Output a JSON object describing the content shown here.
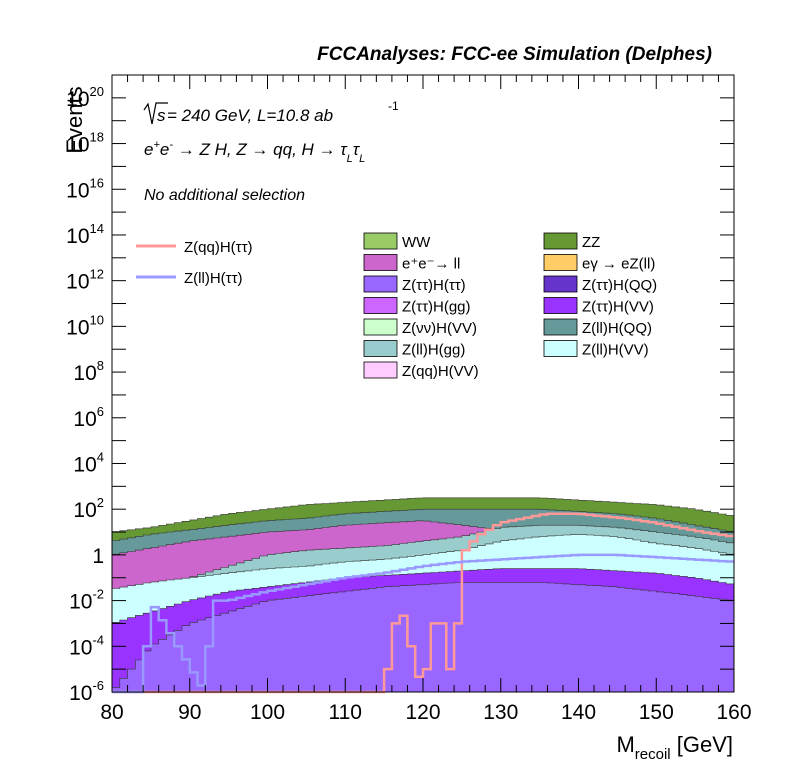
{
  "header": {
    "title": "FCCAnalyses: FCC-ee Simulation (Delphes)"
  },
  "annotations": {
    "energy_sqrt": "s",
    "energy_rest": " = 240 GeV, L=10.8 ab",
    "energy_exp": "-1",
    "process_lhs": "e",
    "process_sup1": "+",
    "process_e2": "e",
    "process_sup2": "-",
    "process_mid": " → Z H, Z  → qq, H  → τ",
    "process_sub1": "L",
    "process_tau2": "τ",
    "process_sub2": "L",
    "selection": "No additional selection"
  },
  "chart_data": {
    "type": "histogram",
    "title": "FCCAnalyses: FCC-ee Simulation (Delphes)",
    "xlabel_main": "M",
    "xlabel_sub": "recoil",
    "xlabel_unit": " [GeV]",
    "ylabel": "Events",
    "xlim": [
      80,
      160
    ],
    "ylim": [
      1e-06,
      1e+21
    ],
    "y_log": true,
    "x_ticks": [
      "80",
      "90",
      "100",
      "110",
      "120",
      "130",
      "140",
      "150",
      "160"
    ],
    "y_tick_labels": [
      {
        "base": "10",
        "exp": "-6"
      },
      {
        "base": "10",
        "exp": "-4"
      },
      {
        "base": "10",
        "exp": "-2"
      },
      {
        "base": "1",
        "exp": ""
      },
      {
        "base": "10",
        "exp": "2"
      },
      {
        "base": "10",
        "exp": "4"
      },
      {
        "base": "10",
        "exp": "6"
      },
      {
        "base": "10",
        "exp": "8"
      },
      {
        "base": "10",
        "exp": "10"
      },
      {
        "base": "10",
        "exp": "12"
      },
      {
        "base": "10",
        "exp": "14"
      },
      {
        "base": "10",
        "exp": "16"
      },
      {
        "base": "10",
        "exp": "18"
      },
      {
        "base": "10",
        "exp": "20"
      }
    ],
    "legend_signal": [
      {
        "name": "Z(qq)H(ττ)",
        "color": "#ff9999"
      },
      {
        "name": "Z(ll)H(ττ)",
        "color": "#9999ff"
      }
    ],
    "legend_backgrounds": [
      {
        "name": "WW",
        "color": "#99cc66"
      },
      {
        "name": "ZZ",
        "color": "#669933"
      },
      {
        "name": "e⁺e⁻→ ll",
        "color": "#cc66cc"
      },
      {
        "name": "eγ → eZ(ll)",
        "color": "#ffcc66"
      },
      {
        "name": "Z(ττ)H(ττ)",
        "color": "#9966ff"
      },
      {
        "name": "Z(ττ)H(QQ)",
        "color": "#6633cc"
      },
      {
        "name": "Z(ττ)H(gg)",
        "color": "#cc66ff"
      },
      {
        "name": "Z(ττ)H(VV)",
        "color": "#9933ff"
      },
      {
        "name": "Z(νν)H(VV)",
        "color": "#ccffcc"
      },
      {
        "name": "Z(ll)H(QQ)",
        "color": "#669999"
      },
      {
        "name": "Z(ll)H(gg)",
        "color": "#99cccc"
      },
      {
        "name": "Z(ll)H(VV)",
        "color": "#ccffff"
      },
      {
        "name": "Z(qq)H(VV)",
        "color": "#ffccff"
      }
    ],
    "stack_envelopes_log10": [
      {
        "name": "ZZ",
        "color": "#669933",
        "x": [
          80,
          85,
          90,
          95,
          100,
          105,
          110,
          115,
          120,
          125,
          130,
          135,
          140,
          145,
          150,
          155,
          160
        ],
        "log10_y": [
          1.0,
          1.2,
          1.5,
          1.8,
          2.0,
          2.2,
          2.3,
          2.4,
          2.5,
          2.5,
          2.5,
          2.5,
          2.4,
          2.3,
          2.2,
          2.0,
          1.7
        ]
      },
      {
        "name": "Z(ll)H(QQ)",
        "color": "#669999",
        "x": [
          80,
          85,
          90,
          95,
          100,
          105,
          110,
          115,
          120,
          125,
          130,
          135,
          140,
          145,
          150,
          155,
          160
        ],
        "log10_y": [
          0.6,
          0.9,
          1.1,
          1.3,
          1.5,
          1.6,
          1.8,
          1.9,
          2.0,
          2.0,
          2.0,
          2.0,
          1.9,
          1.8,
          1.6,
          1.3,
          1.0
        ]
      },
      {
        "name": "e⁺e⁻→ ll",
        "color": "#cc66cc",
        "x": [
          80,
          85,
          90,
          95,
          100,
          105,
          110,
          115,
          120,
          125,
          130,
          135,
          140,
          145,
          150,
          155,
          160
        ],
        "log10_y": [
          0.0,
          0.3,
          0.6,
          0.8,
          1.0,
          1.1,
          1.3,
          1.4,
          1.5,
          1.3,
          1.1,
          0.9,
          0.7,
          0.5,
          0.3,
          0.1,
          0.0
        ]
      },
      {
        "name": "Z(ll)H(gg)",
        "color": "#99cccc",
        "x": [
          80,
          85,
          90,
          95,
          100,
          105,
          110,
          115,
          120,
          125,
          130,
          135,
          140,
          145,
          150,
          155,
          160
        ],
        "log10_y": [
          -4.0,
          -2.5,
          -1.0,
          -0.5,
          0.0,
          0.2,
          0.3,
          0.4,
          0.6,
          0.8,
          1.2,
          1.3,
          1.3,
          1.2,
          1.0,
          0.8,
          0.5
        ]
      },
      {
        "name": "Z(ll)H(VV)",
        "color": "#ccffff",
        "x": [
          80,
          85,
          90,
          95,
          100,
          105,
          110,
          115,
          120,
          125,
          130,
          135,
          140,
          145,
          150,
          155,
          160
        ],
        "log10_y": [
          -1.5,
          -1.2,
          -1.0,
          -0.8,
          -0.6,
          -0.5,
          -0.3,
          -0.2,
          0.0,
          0.2,
          0.6,
          0.8,
          0.9,
          0.8,
          0.5,
          0.3,
          0.0
        ]
      },
      {
        "name": "Z(ττ)H(VV)",
        "color": "#9933ff",
        "x": [
          80,
          85,
          90,
          95,
          100,
          105,
          110,
          115,
          120,
          125,
          130,
          135,
          140,
          145,
          150,
          155,
          160
        ],
        "log10_y": [
          -3.0,
          -2.5,
          -2.0,
          -1.6,
          -1.4,
          -1.2,
          -1.0,
          -0.9,
          -0.8,
          -0.7,
          -0.6,
          -0.6,
          -0.6,
          -0.7,
          -0.8,
          -1.0,
          -1.3
        ]
      },
      {
        "name": "Z(ττ)H(ττ)",
        "color": "#9966ff",
        "x": [
          80,
          85,
          90,
          95,
          100,
          105,
          110,
          115,
          120,
          125,
          130,
          135,
          140,
          145,
          150,
          155,
          160
        ],
        "log10_y": [
          -6.0,
          -4.0,
          -3.0,
          -2.5,
          -2.0,
          -1.8,
          -1.6,
          -1.4,
          -1.3,
          -1.2,
          -1.2,
          -1.2,
          -1.3,
          -1.4,
          -1.6,
          -1.8,
          -2.0
        ]
      }
    ],
    "signal_lines_log10": [
      {
        "name": "Z(qq)H(ττ)",
        "color": "#ff9999",
        "x": [
          80,
          115,
          117,
          120,
          122,
          124,
          125,
          127,
          130,
          133,
          136,
          138,
          140,
          143,
          146,
          150,
          153,
          156,
          160
        ],
        "log10_y": [
          -6,
          -6,
          -2,
          -6,
          -2,
          -6,
          0.0,
          0.8,
          1.4,
          1.6,
          1.8,
          1.8,
          1.8,
          1.7,
          1.6,
          1.4,
          1.2,
          1.0,
          0.8
        ]
      },
      {
        "name": "Z(ll)H(ττ)",
        "color": "#9999ff",
        "x": [
          80,
          84,
          85,
          92,
          93,
          95,
          100,
          105,
          110,
          115,
          120,
          125,
          130,
          135,
          140,
          145,
          150,
          155,
          160
        ],
        "log10_y": [
          -6,
          -6,
          -2,
          -6,
          -2,
          -2.0,
          -1.6,
          -1.3,
          -1.0,
          -0.8,
          -0.5,
          -0.3,
          -0.2,
          -0.1,
          0.0,
          0.0,
          -0.1,
          -0.2,
          -0.3
        ]
      }
    ]
  }
}
